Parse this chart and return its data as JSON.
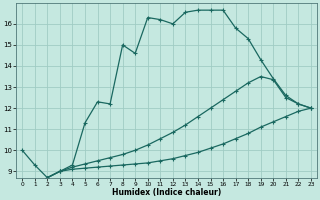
{
  "xlabel": "Humidex (Indice chaleur)",
  "xlim": [
    -0.5,
    23.5
  ],
  "ylim": [
    8.7,
    17.0
  ],
  "yticks": [
    9,
    10,
    11,
    12,
    13,
    14,
    15,
    16
  ],
  "xticks": [
    0,
    1,
    2,
    3,
    4,
    5,
    6,
    7,
    8,
    9,
    10,
    11,
    12,
    13,
    14,
    15,
    16,
    17,
    18,
    19,
    20,
    21,
    22,
    23
  ],
  "bg_color": "#c5e8e0",
  "grid_color": "#a0ccc4",
  "line_color": "#1a6860",
  "line1_x": [
    0,
    1,
    2,
    3,
    4,
    5,
    6,
    7,
    8,
    9,
    10,
    11,
    12,
    13,
    14,
    15,
    16,
    17,
    18,
    19,
    20,
    21,
    22,
    23
  ],
  "line1_y": [
    10.0,
    9.3,
    8.7,
    9.0,
    9.3,
    11.3,
    12.3,
    12.2,
    15.0,
    14.6,
    16.3,
    16.2,
    16.0,
    16.55,
    16.65,
    16.65,
    16.65,
    15.8,
    15.3,
    14.3,
    13.4,
    12.6,
    12.2,
    12.0
  ],
  "line2_x": [
    2,
    3,
    4,
    5,
    6,
    7,
    8,
    9,
    10,
    11,
    12,
    13,
    14,
    15,
    16,
    17,
    18,
    19,
    20,
    21,
    22,
    23
  ],
  "line2_y": [
    8.7,
    9.0,
    9.1,
    9.15,
    9.2,
    9.25,
    9.3,
    9.35,
    9.4,
    9.5,
    9.6,
    9.75,
    9.9,
    10.1,
    10.3,
    10.55,
    10.8,
    11.1,
    11.35,
    11.6,
    11.85,
    12.0
  ],
  "line3_x": [
    2,
    3,
    4,
    5,
    6,
    7,
    8,
    9,
    10,
    11,
    12,
    13,
    14,
    15,
    16,
    17,
    18,
    19,
    20,
    21,
    22,
    23
  ],
  "line3_y": [
    8.7,
    9.0,
    9.2,
    9.35,
    9.5,
    9.65,
    9.8,
    10.0,
    10.25,
    10.55,
    10.85,
    11.2,
    11.6,
    12.0,
    12.4,
    12.8,
    13.2,
    13.5,
    13.35,
    12.5,
    12.2,
    12.0
  ]
}
